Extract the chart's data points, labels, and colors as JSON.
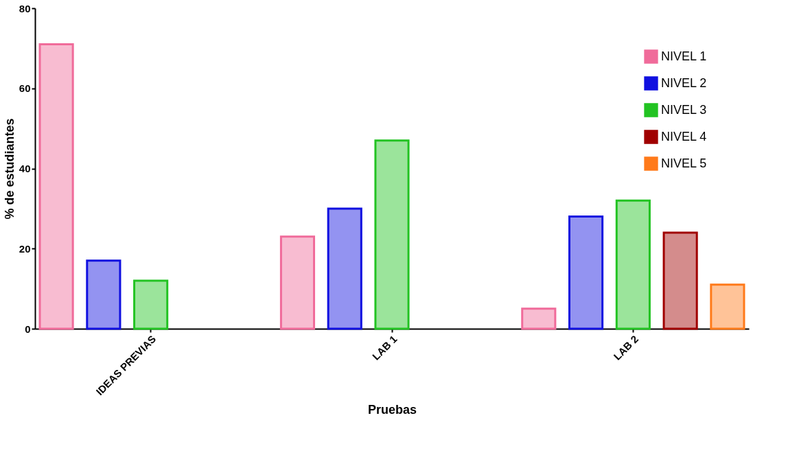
{
  "chart_data": {
    "type": "bar",
    "xlabel": "Pruebas",
    "ylabel": "% de estudiantes",
    "categories": [
      "IDEAS PREVIAS",
      "LAB 1",
      "LAB 2"
    ],
    "series": [
      {
        "name": "NIVEL 1",
        "color": "#f06b9a",
        "values": [
          71,
          23,
          5
        ]
      },
      {
        "name": "NIVEL 2",
        "color": "#1010e0",
        "values": [
          17,
          30,
          28
        ]
      },
      {
        "name": "NIVEL 3",
        "color": "#22c322",
        "values": [
          12,
          47,
          32
        ]
      },
      {
        "name": "NIVEL 4",
        "color": "#a00000",
        "values": [
          null,
          null,
          24
        ]
      },
      {
        "name": "NIVEL 5",
        "color": "#ff7a1a",
        "values": [
          null,
          null,
          11
        ]
      }
    ],
    "ylim": [
      0,
      80
    ],
    "yticks": [
      0,
      20,
      40,
      60,
      80
    ],
    "grid": false,
    "legend": "top right"
  }
}
